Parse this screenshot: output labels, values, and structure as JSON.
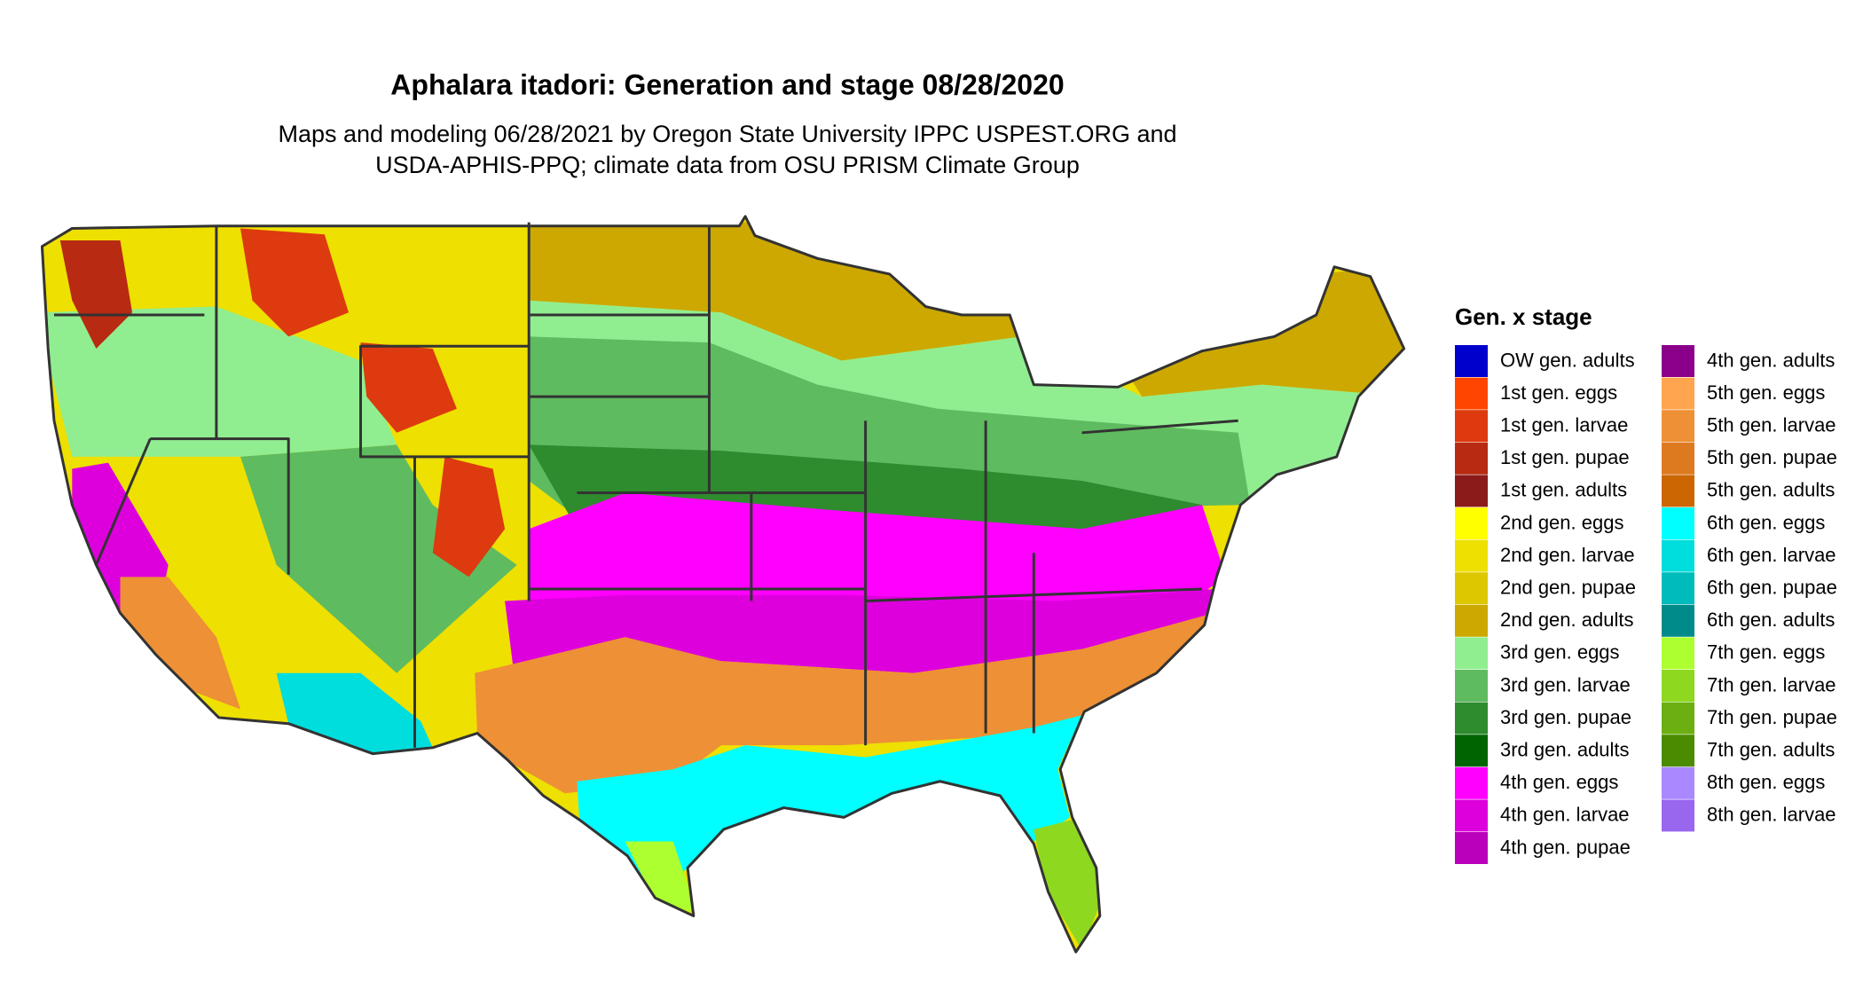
{
  "header": {
    "title": "Aphalara itadori: Generation and stage 08/28/2020",
    "subtitle": [
      "Maps and modeling 06/28/2021 by Oregon State University IPPC USPEST.ORG and",
      "USDA-APHIS-PPQ; climate data from OSU PRISM Climate Group"
    ]
  },
  "legend": {
    "title": "Gen. x stage",
    "items": [
      {
        "label": "OW gen. adults",
        "color": "#0000cd"
      },
      {
        "label": "1st gen. eggs",
        "color": "#ff4500"
      },
      {
        "label": "1st gen. larvae",
        "color": "#dd3a0f"
      },
      {
        "label": "1st gen. pupae",
        "color": "#b82a12"
      },
      {
        "label": "1st gen. adults",
        "color": "#8b1a1a"
      },
      {
        "label": "2nd gen. eggs",
        "color": "#ffff00"
      },
      {
        "label": "2nd gen. larvae",
        "color": "#eee000"
      },
      {
        "label": "2nd gen. pupae",
        "color": "#ddc800"
      },
      {
        "label": "2nd gen. adults",
        "color": "#cca800"
      },
      {
        "label": "3rd gen. eggs",
        "color": "#90ee90"
      },
      {
        "label": "3rd gen. larvae",
        "color": "#5fbb5f"
      },
      {
        "label": "3rd gen. pupae",
        "color": "#2e8b2e"
      },
      {
        "label": "3rd gen. adults",
        "color": "#006400"
      },
      {
        "label": "4th gen. eggs",
        "color": "#ff00ff"
      },
      {
        "label": "4th gen. larvae",
        "color": "#dd00dd"
      },
      {
        "label": "4th gen. pupae",
        "color": "#bb00bb"
      },
      {
        "label": "4th gen. adults",
        "color": "#8b008b"
      },
      {
        "label": "5th gen. eggs",
        "color": "#ffa54f"
      },
      {
        "label": "5th gen. larvae",
        "color": "#ee9035"
      },
      {
        "label": "5th gen. pupae",
        "color": "#dd7a20"
      },
      {
        "label": "5th gen. adults",
        "color": "#cc6600"
      },
      {
        "label": "6th gen. eggs",
        "color": "#00ffff"
      },
      {
        "label": "6th gen. larvae",
        "color": "#00dddd"
      },
      {
        "label": "6th gen. pupae",
        "color": "#00bbbb"
      },
      {
        "label": "6th gen. adults",
        "color": "#008b8b"
      },
      {
        "label": "7th gen. eggs",
        "color": "#adff2f"
      },
      {
        "label": "7th gen. larvae",
        "color": "#8ed820"
      },
      {
        "label": "7th gen. pupae",
        "color": "#6bb010"
      },
      {
        "label": "7th gen. adults",
        "color": "#4a8b00"
      },
      {
        "label": "8th gen. eggs",
        "color": "#aa88ff"
      },
      {
        "label": "8th gen. larvae",
        "color": "#9966ee"
      }
    ]
  }
}
